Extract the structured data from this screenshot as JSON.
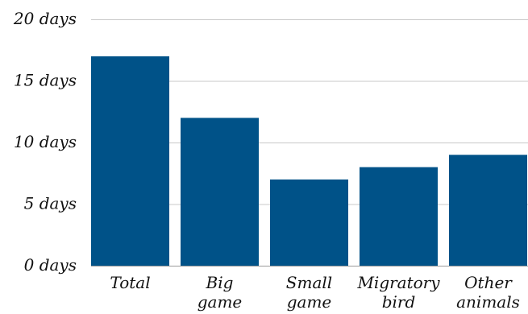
{
  "chart_data": {
    "type": "bar",
    "categories": [
      [
        "Total"
      ],
      [
        "Big",
        "game"
      ],
      [
        "Small",
        "game"
      ],
      [
        "Migratory",
        "bird"
      ],
      [
        "Other",
        "animals"
      ]
    ],
    "values": [
      17,
      12,
      7,
      8,
      9
    ],
    "y_ticks": [
      {
        "value": 0,
        "label": "0 days"
      },
      {
        "value": 5,
        "label": "5 days"
      },
      {
        "value": 10,
        "label": "10 days"
      },
      {
        "value": 15,
        "label": "15 days"
      },
      {
        "value": 20,
        "label": "20 days"
      }
    ],
    "ylim": [
      0,
      20
    ],
    "grid": true,
    "title": "",
    "xlabel": "",
    "ylabel": "",
    "colors": {
      "bar": "#005288",
      "grid": "#c8c8c8",
      "text": "#111111"
    }
  }
}
